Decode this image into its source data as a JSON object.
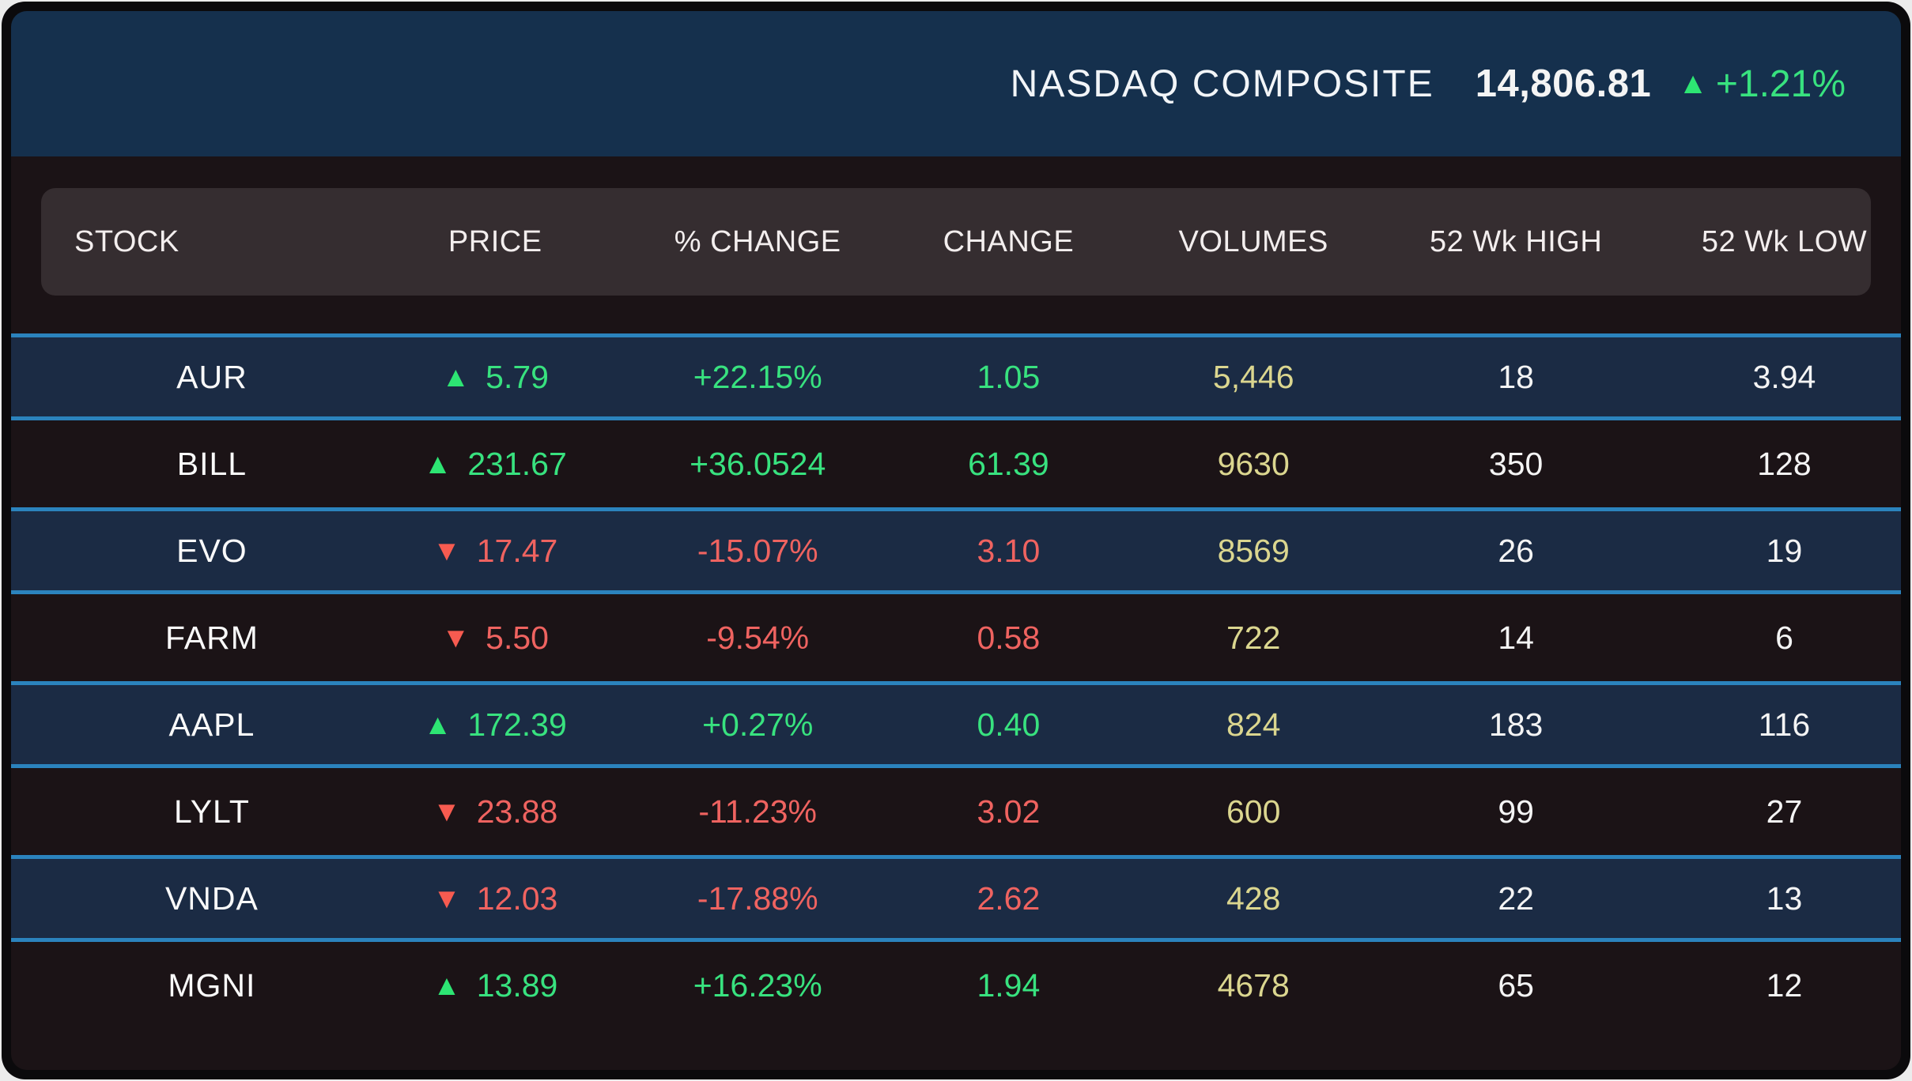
{
  "index_header": {
    "index_name": "NASDAQ COMPOSITE",
    "index_value": "14,806.81",
    "index_change": "+1.21%",
    "direction": "up"
  },
  "table": {
    "columns": [
      "STOCK",
      "PRICE",
      "% CHANGE",
      "CHANGE",
      "VOLUMES",
      "52 Wk HIGH",
      "52 Wk LOW"
    ],
    "rows": [
      {
        "stock": "AUR",
        "direction": "up",
        "price": "5.79",
        "pct_change": "+22.15%",
        "change": "1.05",
        "volumes": "5,446",
        "high": "18",
        "low": "3.94",
        "highlight": true
      },
      {
        "stock": "BILL",
        "direction": "up",
        "price": "231.67",
        "pct_change": "+36.0524",
        "change": "61.39",
        "volumes": "9630",
        "high": "350",
        "low": "128",
        "highlight": false
      },
      {
        "stock": "EVO",
        "direction": "down",
        "price": "17.47",
        "pct_change": "-15.07%",
        "change": "3.10",
        "volumes": "8569",
        "high": "26",
        "low": "19",
        "highlight": true
      },
      {
        "stock": "FARM",
        "direction": "down",
        "price": "5.50",
        "pct_change": "-9.54%",
        "change": "0.58",
        "volumes": "722",
        "high": "14",
        "low": "6",
        "highlight": false
      },
      {
        "stock": "AAPL",
        "direction": "up",
        "price": "172.39",
        "pct_change": "+0.27%",
        "change": "0.40",
        "volumes": "824",
        "high": "183",
        "low": "116",
        "highlight": true
      },
      {
        "stock": "LYLT",
        "direction": "down",
        "price": "23.88",
        "pct_change": "-11.23%",
        "change": "3.02",
        "volumes": "600",
        "high": "99",
        "low": "27",
        "highlight": false
      },
      {
        "stock": "VNDA",
        "direction": "down",
        "price": "12.03",
        "pct_change": "-17.88%",
        "change": "2.62",
        "volumes": "428",
        "high": "22",
        "low": "13",
        "highlight": true
      },
      {
        "stock": "MGNI",
        "direction": "up",
        "price": "13.89",
        "pct_change": "+16.23%",
        "change": "1.94",
        "volumes": "4678",
        "high": "65",
        "low": "12",
        "highlight": false
      }
    ]
  },
  "colors": {
    "up": "#38e27f",
    "up-triangle": "#2de573",
    "down": "#ef6360",
    "down-triangle": "#f75b50",
    "volume": "#dbd68f",
    "row-highlight-bg": "#1b2b44",
    "row-highlight-border": "#2b83bd",
    "header-bg": "#15304d"
  }
}
